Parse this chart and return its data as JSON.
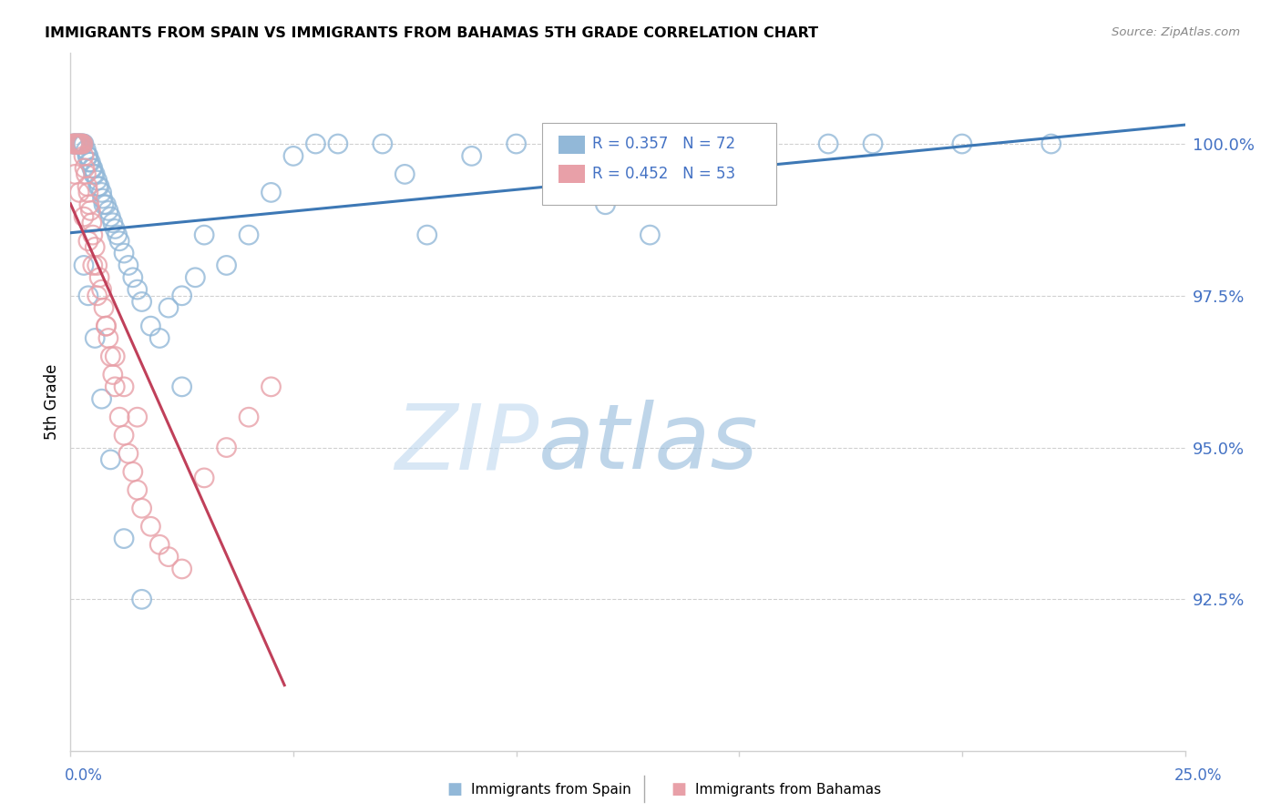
{
  "title": "IMMIGRANTS FROM SPAIN VS IMMIGRANTS FROM BAHAMAS 5TH GRADE CORRELATION CHART",
  "source": "Source: ZipAtlas.com",
  "ylabel": "5th Grade",
  "y_ticks_vals": [
    92.5,
    95.0,
    97.5,
    100.0
  ],
  "y_ticks_labels": [
    "92.5%",
    "95.0%",
    "97.5%",
    "100.0%"
  ],
  "x_bottom_left": "0.0%",
  "x_bottom_right": "25.0%",
  "x_lim": [
    0.0,
    25.0
  ],
  "y_lim": [
    90.0,
    101.5
  ],
  "blue_scatter_color": "#92b8d8",
  "pink_scatter_color": "#e8a0a8",
  "blue_line_color": "#3d78b5",
  "pink_line_color": "#c0405a",
  "right_label_color": "#4472c4",
  "legend_blue": "R = 0.357   N = 72",
  "legend_pink": "R = 0.452   N = 53",
  "bottom_legend_spain": "Immigrants from Spain",
  "bottom_legend_bahamas": "Immigrants from Bahamas",
  "watermark_zip": "ZIP",
  "watermark_atlas": "atlas",
  "grid_color": "#d0d0d0",
  "background": "#ffffff",
  "spain_x": [
    0.05,
    0.08,
    0.1,
    0.12,
    0.15,
    0.18,
    0.2,
    0.22,
    0.25,
    0.28,
    0.3,
    0.35,
    0.38,
    0.4,
    0.42,
    0.45,
    0.48,
    0.5,
    0.52,
    0.55,
    0.6,
    0.62,
    0.65,
    0.7,
    0.72,
    0.75,
    0.8,
    0.85,
    0.9,
    0.95,
    1.0,
    1.05,
    1.1,
    1.2,
    1.3,
    1.4,
    1.5,
    1.6,
    1.8,
    2.0,
    2.2,
    2.5,
    2.8,
    3.0,
    3.5,
    4.0,
    4.5,
    5.0,
    5.5,
    6.0,
    7.0,
    7.5,
    8.0,
    9.0,
    10.0,
    11.0,
    12.0,
    13.0,
    14.0,
    15.0,
    17.0,
    18.0,
    20.0,
    22.0,
    0.3,
    0.4,
    0.55,
    0.7,
    0.9,
    1.2,
    1.6,
    2.5
  ],
  "spain_y": [
    100.0,
    100.0,
    100.0,
    100.0,
    100.0,
    100.0,
    100.0,
    100.0,
    100.0,
    100.0,
    100.0,
    99.9,
    99.8,
    99.8,
    99.7,
    99.7,
    99.6,
    99.6,
    99.5,
    99.5,
    99.4,
    99.3,
    99.3,
    99.2,
    99.1,
    99.0,
    99.0,
    98.9,
    98.8,
    98.7,
    98.6,
    98.5,
    98.4,
    98.2,
    98.0,
    97.8,
    97.6,
    97.4,
    97.0,
    96.8,
    97.3,
    97.5,
    97.8,
    98.5,
    98.0,
    98.5,
    99.2,
    99.8,
    100.0,
    100.0,
    100.0,
    99.5,
    98.5,
    99.8,
    100.0,
    100.0,
    99.0,
    98.5,
    100.0,
    100.0,
    100.0,
    100.0,
    100.0,
    100.0,
    98.0,
    97.5,
    96.8,
    95.8,
    94.8,
    93.5,
    92.5,
    96.0
  ],
  "bahamas_x": [
    0.05,
    0.08,
    0.1,
    0.12,
    0.15,
    0.18,
    0.2,
    0.22,
    0.25,
    0.28,
    0.3,
    0.32,
    0.35,
    0.38,
    0.4,
    0.42,
    0.45,
    0.48,
    0.5,
    0.55,
    0.6,
    0.65,
    0.7,
    0.75,
    0.8,
    0.85,
    0.9,
    0.95,
    1.0,
    1.1,
    1.2,
    1.3,
    1.4,
    1.5,
    1.6,
    1.8,
    2.0,
    2.2,
    2.5,
    3.0,
    3.5,
    4.0,
    4.5,
    0.1,
    0.2,
    0.3,
    0.4,
    0.5,
    0.6,
    0.8,
    1.0,
    1.2,
    1.5
  ],
  "bahamas_y": [
    100.0,
    100.0,
    100.0,
    100.0,
    100.0,
    100.0,
    100.0,
    100.0,
    100.0,
    100.0,
    99.8,
    99.6,
    99.5,
    99.3,
    99.2,
    99.0,
    98.9,
    98.7,
    98.5,
    98.3,
    98.0,
    97.8,
    97.6,
    97.3,
    97.0,
    96.8,
    96.5,
    96.2,
    96.0,
    95.5,
    95.2,
    94.9,
    94.6,
    94.3,
    94.0,
    93.7,
    93.4,
    93.2,
    93.0,
    94.5,
    95.0,
    95.5,
    96.0,
    99.5,
    99.2,
    98.8,
    98.4,
    98.0,
    97.5,
    97.0,
    96.5,
    96.0,
    95.5
  ]
}
